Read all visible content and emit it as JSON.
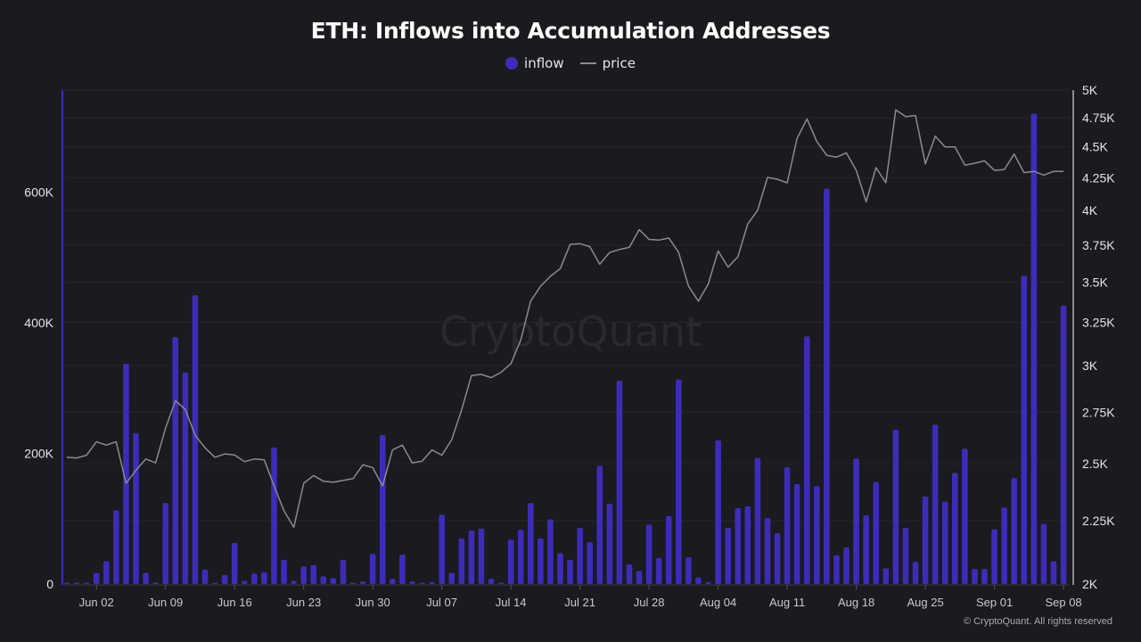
{
  "chart_data": {
    "type": "bar+line",
    "title": "ETH: Inflows into Accumulation Addresses",
    "legend_position": "top",
    "grid": true,
    "colors": {
      "inflow": "#3d2cb8",
      "price": "#8a8a90",
      "background": "#1b1a1f"
    },
    "x": [
      "May 30",
      "May 31",
      "Jun 01",
      "Jun 02",
      "Jun 03",
      "Jun 04",
      "Jun 05",
      "Jun 06",
      "Jun 07",
      "Jun 08",
      "Jun 09",
      "Jun 10",
      "Jun 11",
      "Jun 12",
      "Jun 13",
      "Jun 14",
      "Jun 15",
      "Jun 16",
      "Jun 17",
      "Jun 18",
      "Jun 19",
      "Jun 20",
      "Jun 21",
      "Jun 22",
      "Jun 23",
      "Jun 24",
      "Jun 25",
      "Jun 26",
      "Jun 27",
      "Jun 28",
      "Jun 29",
      "Jun 30",
      "Jul 01",
      "Jul 02",
      "Jul 03",
      "Jul 04",
      "Jul 05",
      "Jul 06",
      "Jul 07",
      "Jul 08",
      "Jul 09",
      "Jul 10",
      "Jul 11",
      "Jul 12",
      "Jul 13",
      "Jul 14",
      "Jul 15",
      "Jul 16",
      "Jul 17",
      "Jul 18",
      "Jul 19",
      "Jul 20",
      "Jul 21",
      "Jul 22",
      "Jul 23",
      "Jul 24",
      "Jul 25",
      "Jul 26",
      "Jul 27",
      "Jul 28",
      "Jul 29",
      "Jul 30",
      "Jul 31",
      "Aug 01",
      "Aug 02",
      "Aug 03",
      "Aug 04",
      "Aug 05",
      "Aug 06",
      "Aug 07",
      "Aug 08",
      "Aug 09",
      "Aug 10",
      "Aug 11",
      "Aug 12",
      "Aug 13",
      "Aug 14",
      "Aug 15",
      "Aug 16",
      "Aug 17",
      "Aug 18",
      "Aug 19",
      "Aug 20",
      "Aug 21",
      "Aug 22",
      "Aug 23",
      "Aug 24",
      "Aug 25",
      "Aug 26",
      "Aug 27",
      "Aug 28",
      "Aug 29",
      "Aug 30",
      "Aug 31",
      "Sep 01",
      "Sep 02",
      "Sep 03",
      "Sep 04",
      "Sep 05",
      "Sep 06",
      "Sep 07",
      "Sep 08"
    ],
    "series": [
      {
        "name": "inflow",
        "type": "bar",
        "axis": "left",
        "values": [
          0,
          1000,
          2000,
          17000,
          35000,
          113000,
          337000,
          231000,
          17000,
          1000,
          124000,
          378000,
          324000,
          442000,
          22000,
          1000,
          14000,
          63000,
          5000,
          16000,
          18000,
          209000,
          37000,
          5000,
          27000,
          29000,
          12000,
          9000,
          37000,
          2000,
          4000,
          46000,
          228000,
          8000,
          45000,
          4000,
          2000,
          3000,
          106000,
          17000,
          70000,
          82000,
          85000,
          8000,
          1000,
          68000,
          83000,
          124000,
          70000,
          99000,
          47000,
          37000,
          86000,
          64000,
          181000,
          123000,
          311000,
          30000,
          20000,
          91000,
          40000,
          104000,
          313000,
          41000,
          10000,
          3000,
          220000,
          86000,
          116000,
          119000,
          193000,
          101000,
          78000,
          179000,
          153000,
          379000,
          150000,
          605000,
          44000,
          56000,
          192000,
          105000,
          156000,
          24000,
          236000,
          86000,
          34000,
          134000,
          244000,
          126000,
          170000,
          207000,
          23000,
          23000,
          84000,
          117000,
          162000,
          472000,
          720000,
          92000,
          35000,
          426000
        ]
      },
      {
        "name": "price",
        "type": "line",
        "axis": "right",
        "values": [
          2530,
          2527,
          2540,
          2604,
          2588,
          2604,
          2411,
          2470,
          2522,
          2504,
          2670,
          2810,
          2766,
          2636,
          2575,
          2530,
          2546,
          2541,
          2510,
          2522,
          2518,
          2399,
          2292,
          2222,
          2411,
          2446,
          2420,
          2416,
          2424,
          2432,
          2495,
          2482,
          2399,
          2565,
          2588,
          2504,
          2512,
          2565,
          2540,
          2614,
          2762,
          2944,
          2951,
          2933,
          2962,
          3010,
          3145,
          3380,
          3475,
          3539,
          3590,
          3755,
          3760,
          3740,
          3620,
          3700,
          3720,
          3735,
          3860,
          3790,
          3785,
          3800,
          3700,
          3475,
          3380,
          3490,
          3710,
          3600,
          3670,
          3900,
          4000,
          4252,
          4238,
          4210,
          4571,
          4740,
          4545,
          4430,
          4415,
          4450,
          4308,
          4064,
          4330,
          4210,
          4820,
          4760,
          4770,
          4360,
          4590,
          4500,
          4500,
          4350,
          4365,
          4385,
          4308,
          4315,
          4440,
          4290,
          4300,
          4270,
          4300,
          4300
        ]
      }
    ],
    "x_ticks": [
      "Jun 02",
      "Jun 09",
      "Jun 16",
      "Jun 23",
      "Jun 30",
      "Jul 07",
      "Jul 14",
      "Jul 21",
      "Jul 28",
      "Aug 04",
      "Aug 11",
      "Aug 18",
      "Aug 25",
      "Sep 01",
      "Sep 08"
    ],
    "y_left": {
      "ylim": [
        0,
        756000
      ],
      "scale": "linear",
      "ticks": [
        0,
        200000,
        400000,
        600000
      ],
      "tick_labels": [
        "0",
        "200K",
        "400K",
        "600K"
      ]
    },
    "y_right": {
      "ylim": [
        2000,
        5000
      ],
      "scale": "log",
      "ticks": [
        2000,
        2250,
        2500,
        2750,
        3000,
        3250,
        3500,
        3750,
        4000,
        4250,
        4500,
        4750,
        5000
      ],
      "tick_labels": [
        "2K",
        "2.25K",
        "2.5K",
        "2.75K",
        "3K",
        "3.25K",
        "3.5K",
        "3.75K",
        "4K",
        "4.25K",
        "4.5K",
        "4.75K",
        "5K"
      ]
    }
  },
  "watermark": "CryptoQuant",
  "footer": "© CryptoQuant. All rights reserved"
}
